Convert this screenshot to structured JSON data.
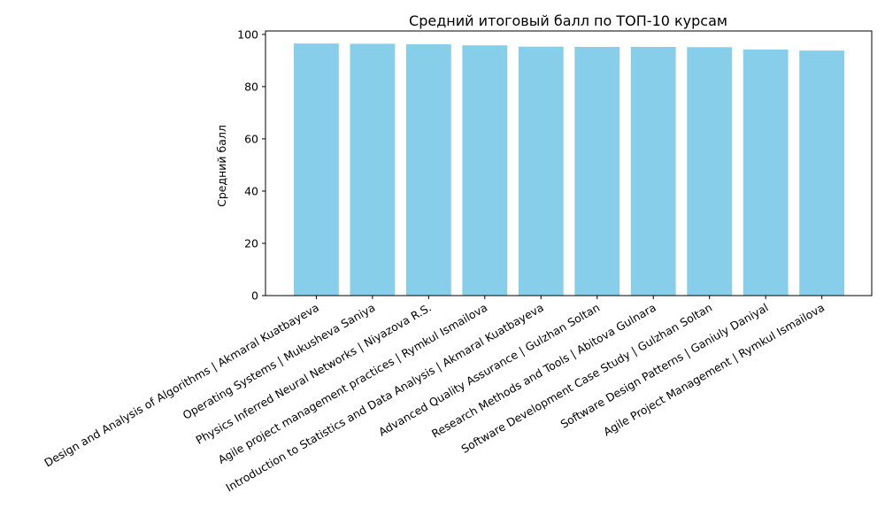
{
  "chart_data": {
    "type": "bar",
    "title": "Средний итоговый балл по ТОП-10 курсам",
    "xlabel": "",
    "ylabel": "Средний балл",
    "ylim": [
      0,
      100
    ],
    "yticks": [
      0,
      20,
      40,
      60,
      80,
      100
    ],
    "grid": false,
    "bar_color": "#87CEEB",
    "categories": [
      "Design and Analysis of Algorithms | Akmaral Kuatbayeva",
      "Operating Systems | Mukusheva Saniya",
      "Physics Inferred Neural Networks | Niyazova R.S.",
      "Agile project management practices | Rymkul Ismailova",
      "Introduction to Statistics and Data Analysis | Akmaral Kuatbayeva",
      "Advanced Quality Assurance | Gulzhan Soltan",
      "Research Methods and Tools | Abitova Gulnara",
      "Software Development Case Study | Gulzhan Soltan",
      "Software Design Patterns | Ganiuly Daniyal",
      "Agile Project Management | Rymkul Ismailova"
    ],
    "values": [
      96.5,
      96.4,
      96.2,
      95.8,
      95.3,
      95.2,
      95.2,
      95.1,
      94.2,
      93.8
    ]
  }
}
